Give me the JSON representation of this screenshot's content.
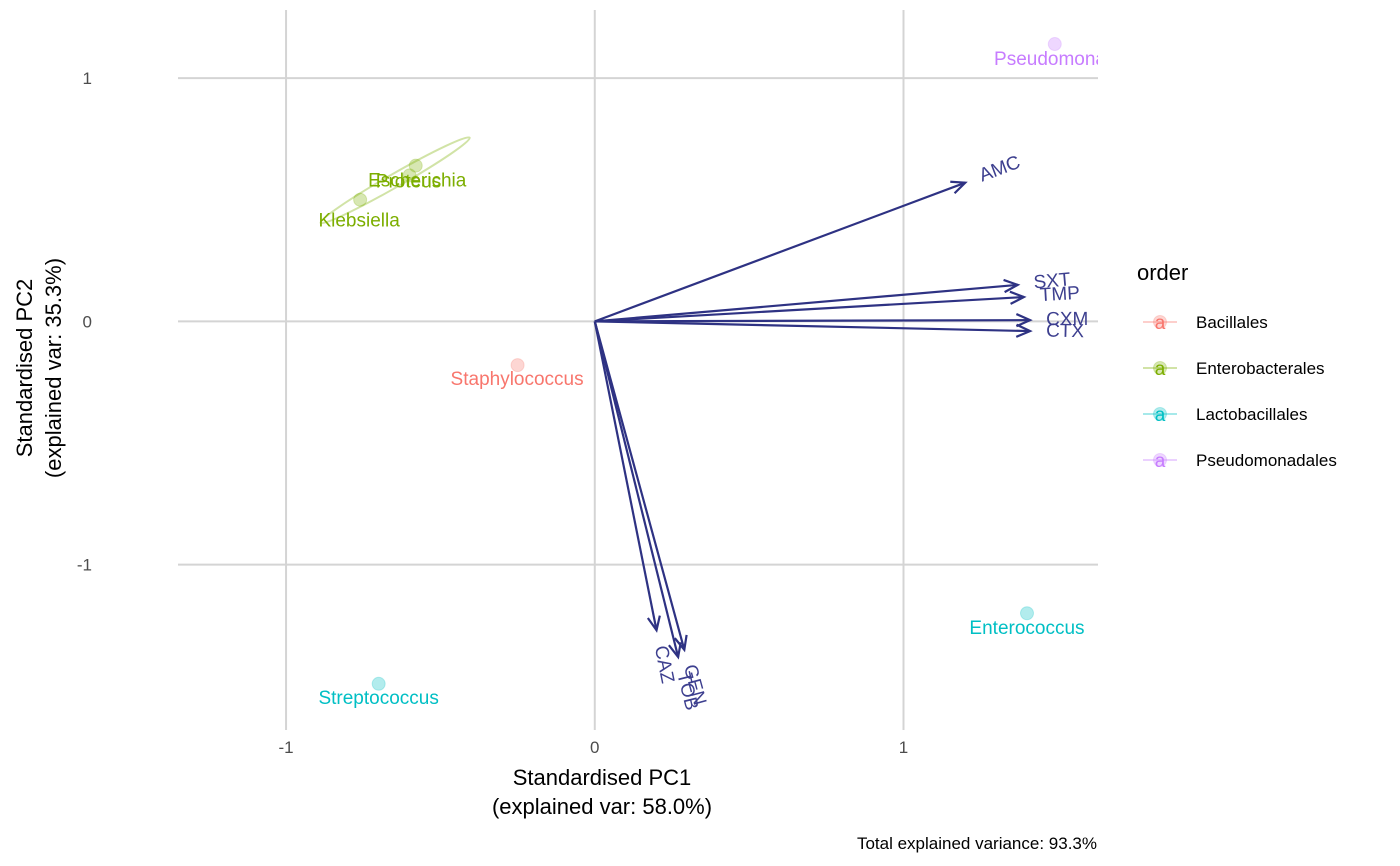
{
  "chart_data": {
    "type": "scatter",
    "subtype": "pca-biplot",
    "xlabel_line1": "Standardised PC1",
    "xlabel_line2": "(explained var: 58.0%)",
    "ylabel_line1": "Standardised PC2",
    "ylabel_line2": "(explained var: 35.3%)",
    "caption": "Total explained variance: 93.3%",
    "xlim": [
      -1.35,
      1.63
    ],
    "ylim": [
      -1.68,
      1.28
    ],
    "x_ticks": [
      {
        "value": -1,
        "label": "-1"
      },
      {
        "value": 0,
        "label": "0"
      },
      {
        "value": 1,
        "label": "1"
      }
    ],
    "y_ticks": [
      {
        "value": -1,
        "label": "-1"
      },
      {
        "value": 0,
        "label": "0"
      },
      {
        "value": 1,
        "label": "1"
      }
    ],
    "grid": true,
    "legend": {
      "title": "order",
      "position": "right",
      "key_glyph": "a",
      "entries": [
        {
          "label": "Bacillales",
          "color": "#F8766D"
        },
        {
          "label": "Enterobacterales",
          "color": "#7CAE00"
        },
        {
          "label": "Lactobacillales",
          "color": "#00BFC4"
        },
        {
          "label": "Pseudomonadales",
          "color": "#C77CFF"
        }
      ]
    },
    "points": [
      {
        "label": "Staphylococcus",
        "order": "Bacillales",
        "x": -0.25,
        "y": -0.18
      },
      {
        "label": "Escherichia",
        "order": "Enterobacterales",
        "x": -0.58,
        "y": 0.64
      },
      {
        "label": "Proteus",
        "order": "Enterobacterales",
        "x": -0.6,
        "y": 0.6
      },
      {
        "label": "Klebsiella",
        "order": "Enterobacterales",
        "x": -0.76,
        "y": 0.5
      },
      {
        "label": "Enterococcus",
        "order": "Lactobacillales",
        "x": 1.4,
        "y": -1.2
      },
      {
        "label": "Streptococcus",
        "order": "Lactobacillales",
        "x": -0.7,
        "y": -1.49
      },
      {
        "label": "Pseudomonas",
        "order": "Pseudomonadales",
        "x": 1.49,
        "y": 1.14
      }
    ],
    "loadings": [
      {
        "label": "AMC",
        "x": 1.2,
        "y": 0.57
      },
      {
        "label": "SXT",
        "x": 1.37,
        "y": 0.15
      },
      {
        "label": "TMP",
        "x": 1.39,
        "y": 0.1
      },
      {
        "label": "CXM",
        "x": 1.41,
        "y": 0.005
      },
      {
        "label": "CTX",
        "x": 1.41,
        "y": -0.04
      },
      {
        "label": "CAZ",
        "x": 0.2,
        "y": -1.27
      },
      {
        "label": "GEN",
        "x": 0.29,
        "y": -1.35
      },
      {
        "label": "TOB",
        "x": 0.27,
        "y": -1.38
      }
    ],
    "colors": {
      "arrow": "#2E3283",
      "arrow_label": "#3D3F8F",
      "grid": "#D4D4D4",
      "tick_text": "#4D4D4D",
      "axis_title": "#000000"
    }
  }
}
